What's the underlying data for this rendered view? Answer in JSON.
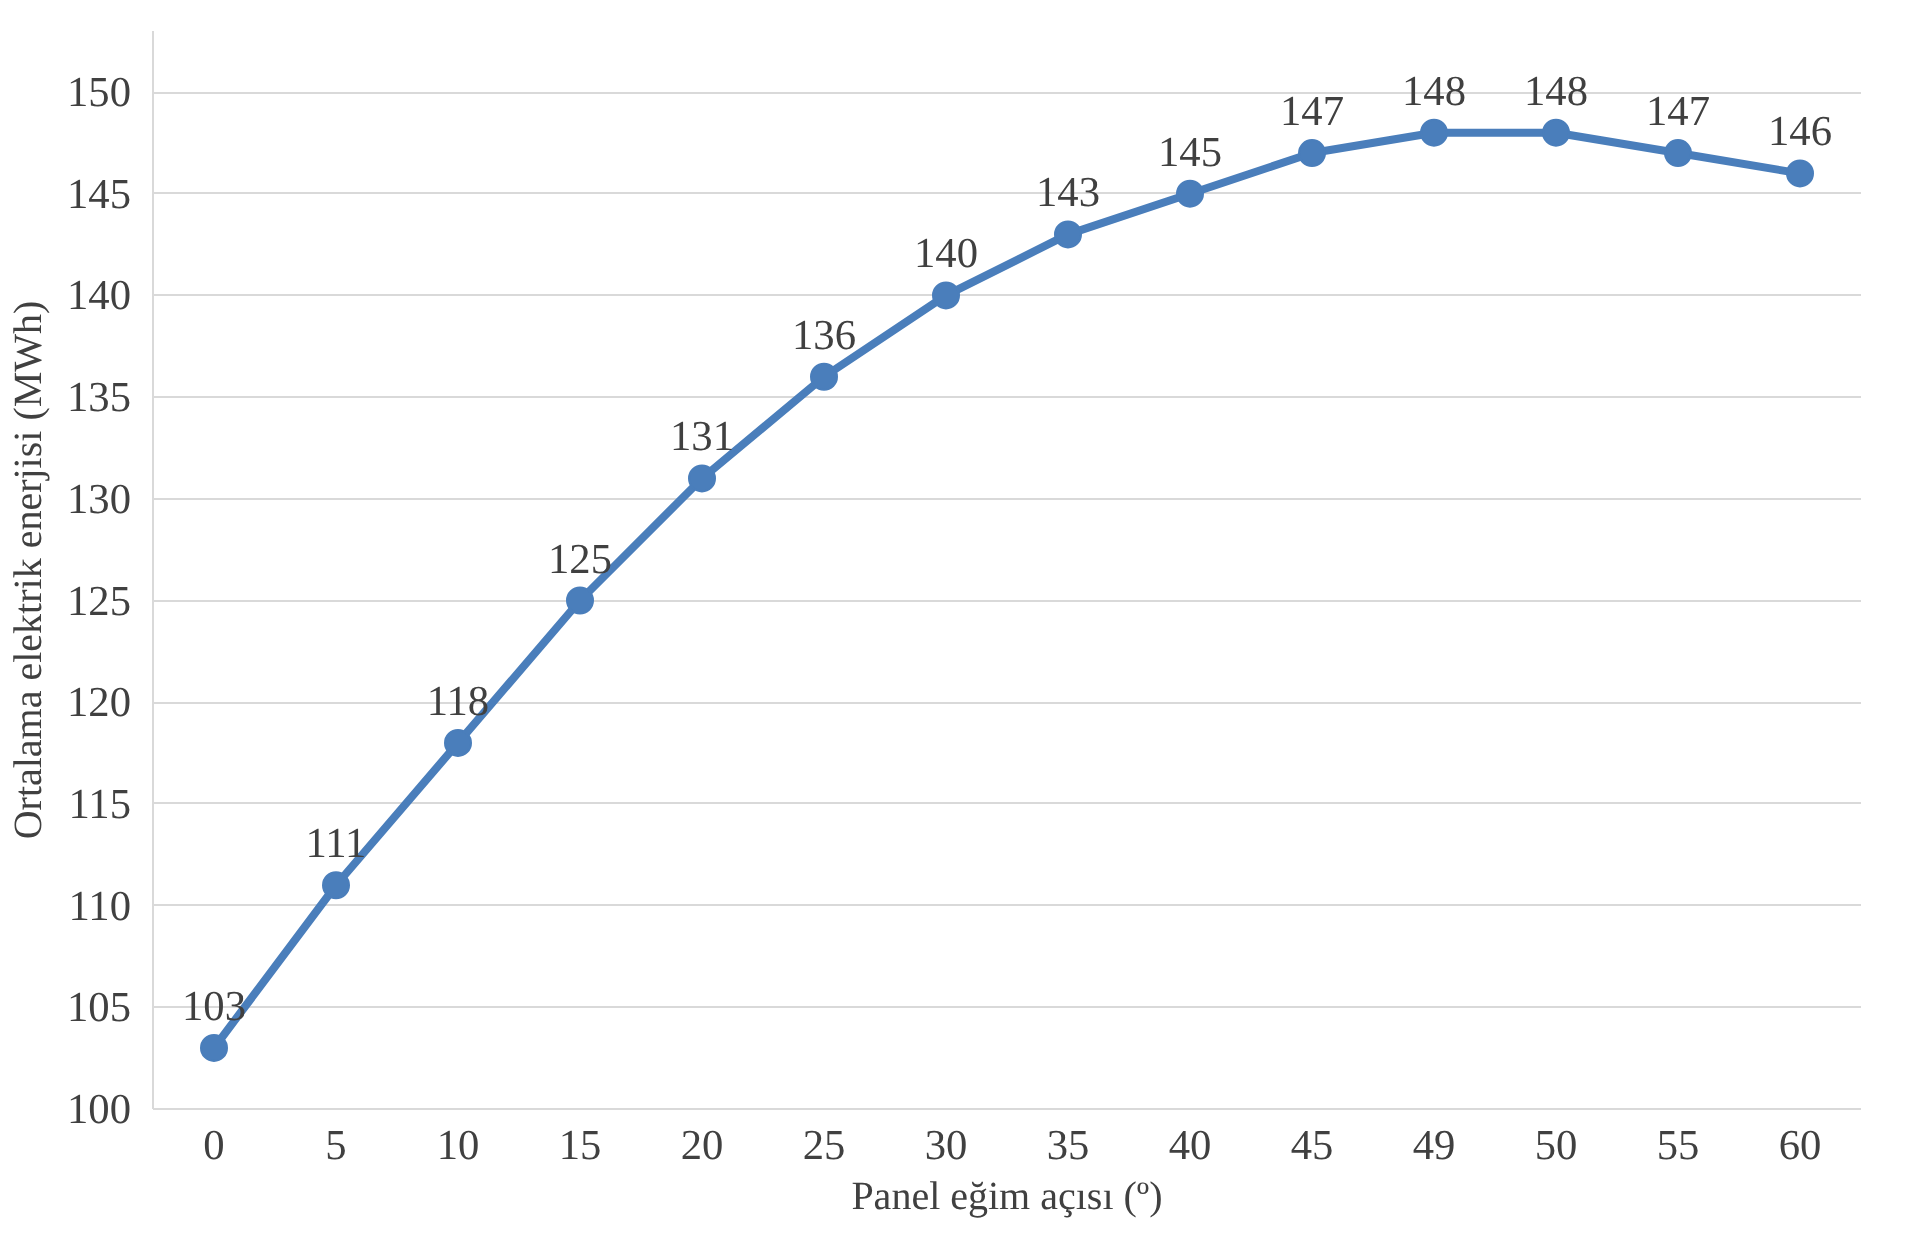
{
  "chart_data": {
    "type": "line",
    "xlabel": "Panel eğim açısı (º)",
    "ylabel": "Ortalama elektrik enerjisi (MWh)",
    "categories": [
      "0",
      "5",
      "10",
      "15",
      "20",
      "25",
      "30",
      "35",
      "40",
      "45",
      "49",
      "50",
      "55",
      "60"
    ],
    "series": [
      {
        "color": "#4a7ebb",
        "values": [
          103,
          111,
          118,
          125,
          131,
          136,
          140,
          143,
          145,
          147,
          148,
          148,
          147,
          146
        ]
      }
    ],
    "ylim": [
      100,
      153
    ],
    "yticks": [
      100,
      105,
      110,
      115,
      120,
      125,
      130,
      135,
      140,
      145,
      150
    ],
    "grid": "y",
    "marker": "circle",
    "line_style": "solid",
    "data_labels": true
  }
}
